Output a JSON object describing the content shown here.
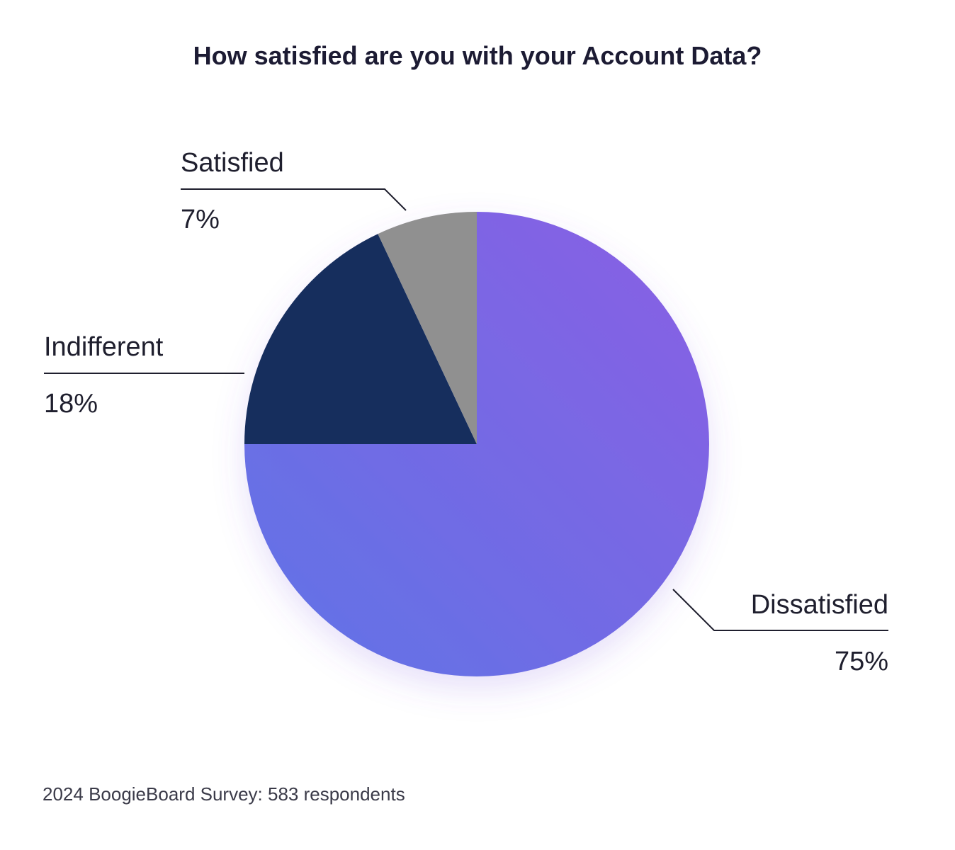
{
  "chart_data": {
    "type": "pie",
    "title": "How satisfied are you with your Account Data?",
    "slices": [
      {
        "label": "Dissatisfied",
        "value": 75,
        "value_label": "75%",
        "color": "#6a6be6"
      },
      {
        "label": "Indifferent",
        "value": 18,
        "value_label": "18%",
        "color": "#122f5d"
      },
      {
        "label": "Satisfied",
        "value": 7,
        "value_label": "7%",
        "color": "#909090"
      }
    ],
    "start_angle": "12 o'clock, clockwise",
    "legend": "none (callout labels)"
  },
  "colors": {
    "dissatisfied_gradient_start": "#8a5fe3",
    "dissatisfied_gradient_end": "#5f74e6"
  },
  "footer": {
    "note": "2024 BoogieBoard Survey: 583 respondents"
  }
}
